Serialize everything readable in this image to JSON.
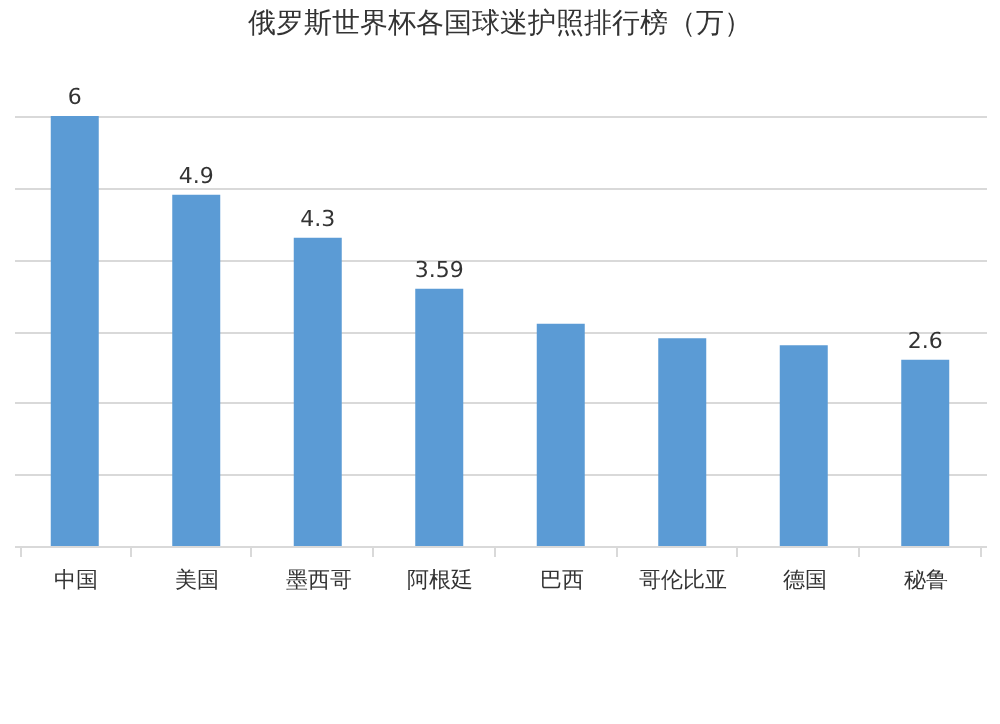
{
  "chart_data": {
    "type": "bar",
    "title": "俄罗斯世界杯各国球迷护照排行榜（万）",
    "categories": [
      "中国",
      "美国",
      "墨西哥",
      "阿根廷",
      "巴西",
      "哥伦比亚",
      "德国",
      "秘鲁"
    ],
    "values": [
      6,
      4.9,
      4.3,
      3.59,
      3.1,
      2.9,
      2.8,
      2.6
    ],
    "value_labels": [
      "6",
      "4.9",
      "4.3",
      "3.59",
      null,
      null,
      null,
      "2.6"
    ],
    "color": "#5b9bd5",
    "grid": "y",
    "tick_labels": "x"
  }
}
